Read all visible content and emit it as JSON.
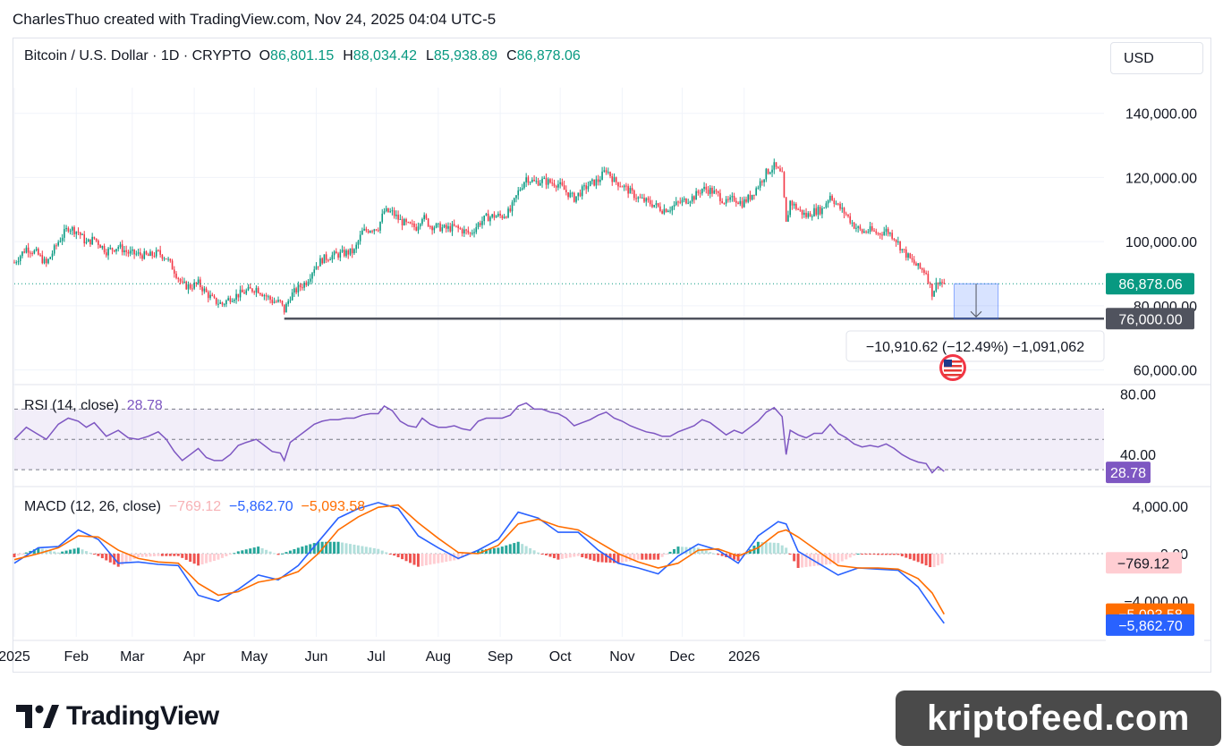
{
  "caption": "CharlesThuo created with TradingView.com, Nov 24, 2025 04:04 UTC-5",
  "header": {
    "symbol": "Bitcoin / U.S. Dollar · 1D · CRYPTO",
    "o_label": "O",
    "o_value": "86,801.15",
    "h_label": "H",
    "h_value": "88,034.42",
    "l_label": "L",
    "l_value": "85,938.89",
    "c_label": "C",
    "c_value": "86,878.06",
    "currency": "USD"
  },
  "colors": {
    "up": "#089981",
    "down": "#f23645",
    "rsi": "#7e57c2",
    "macd": "#2962ff",
    "signal": "#ff6d00",
    "hist_up": "#26a69a",
    "hist_down": "#ef5350"
  },
  "chart_data": [
    {
      "type": "candlestick",
      "title": "Bitcoin / U.S. Dollar · 1D · CRYPTO",
      "x_labels": [
        "2025",
        "Feb",
        "Mar",
        "Apr",
        "May",
        "Jun",
        "Jul",
        "Aug",
        "Sep",
        "Oct",
        "Nov",
        "Dec",
        "2026"
      ],
      "y_ticks": [
        "140,000.00",
        "120,000.00",
        "100,000.00",
        "80,000.00",
        "60,000.00"
      ],
      "ylim": [
        56000,
        148000
      ],
      "close_path": [
        [
          0,
          93500
        ],
        [
          6,
          98000
        ],
        [
          11,
          96500
        ],
        [
          16,
          93000
        ],
        [
          22,
          100000
        ],
        [
          27,
          104500
        ],
        [
          32,
          103000
        ],
        [
          36,
          99500
        ],
        [
          40,
          101000
        ],
        [
          46,
          97000
        ],
        [
          52,
          98500
        ],
        [
          57,
          96500
        ],
        [
          62,
          96000
        ],
        [
          67,
          95500
        ],
        [
          72,
          96500
        ],
        [
          76,
          95000
        ],
        [
          80,
          91000
        ],
        [
          84,
          86500
        ],
        [
          88,
          86000
        ],
        [
          92,
          87000
        ],
        [
          96,
          84000
        ],
        [
          100,
          81500
        ],
        [
          104,
          80500
        ],
        [
          108,
          82500
        ],
        [
          112,
          83500
        ],
        [
          116,
          84500
        ],
        [
          121,
          85500
        ],
        [
          125,
          83500
        ],
        [
          129,
          81500
        ],
        [
          133,
          81000
        ],
        [
          135,
          78500
        ],
        [
          138,
          83000
        ],
        [
          142,
          85500
        ],
        [
          146,
          87500
        ],
        [
          150,
          92000
        ],
        [
          154,
          94500
        ],
        [
          158,
          95500
        ],
        [
          162,
          96000
        ],
        [
          166,
          96500
        ],
        [
          170,
          97000
        ],
        [
          174,
          103000
        ],
        [
          178,
          104000
        ],
        [
          182,
          104500
        ],
        [
          185,
          109500
        ],
        [
          189,
          109000
        ],
        [
          193,
          106500
        ],
        [
          197,
          105000
        ],
        [
          201,
          104500
        ],
        [
          204,
          108000
        ],
        [
          208,
          105000
        ],
        [
          212,
          104500
        ],
        [
          216,
          104000
        ],
        [
          220,
          104500
        ],
        [
          224,
          103500
        ],
        [
          228,
          102500
        ],
        [
          232,
          105500
        ],
        [
          236,
          107500
        ],
        [
          240,
          108000
        ],
        [
          244,
          108000
        ],
        [
          248,
          109500
        ],
        [
          252,
          115500
        ],
        [
          256,
          120000
        ],
        [
          260,
          118500
        ],
        [
          264,
          119000
        ],
        [
          268,
          118500
        ],
        [
          272,
          118000
        ],
        [
          276,
          115500
        ],
        [
          280,
          113500
        ],
        [
          284,
          116000
        ],
        [
          288,
          118000
        ],
        [
          292,
          119000
        ],
        [
          296,
          122500
        ],
        [
          300,
          119000
        ],
        [
          304,
          117500
        ],
        [
          308,
          115500
        ],
        [
          312,
          113500
        ],
        [
          316,
          112500
        ],
        [
          320,
          111500
        ],
        [
          324,
          110000
        ],
        [
          328,
          110500
        ],
        [
          332,
          112000
        ],
        [
          336,
          113000
        ],
        [
          340,
          114000
        ],
        [
          344,
          116500
        ],
        [
          348,
          116000
        ],
        [
          352,
          114500
        ],
        [
          356,
          112000
        ],
        [
          360,
          113500
        ],
        [
          364,
          112000
        ],
        [
          368,
          114000
        ],
        [
          372,
          117500
        ],
        [
          376,
          121500
        ],
        [
          380,
          123500
        ],
        [
          384,
          120500
        ],
        [
          386,
          105500
        ],
        [
          388,
          112500
        ],
        [
          392,
          110000
        ],
        [
          396,
          108000
        ],
        [
          400,
          109500
        ],
        [
          404,
          110000
        ],
        [
          408,
          114500
        ],
        [
          412,
          111000
        ],
        [
          416,
          108500
        ],
        [
          420,
          105000
        ],
        [
          424,
          103000
        ],
        [
          428,
          103500
        ],
        [
          432,
          102500
        ],
        [
          436,
          103500
        ],
        [
          440,
          101500
        ],
        [
          444,
          97500
        ],
        [
          448,
          94500
        ],
        [
          452,
          92000
        ],
        [
          456,
          90500
        ],
        [
          459,
          84000
        ],
        [
          462,
          87800
        ],
        [
          465,
          86878
        ]
      ],
      "series": [
        {
          "name": "",
          "values": []
        }
      ],
      "annotations": {
        "last_price": "86,878.06",
        "horizontal_line": 76000,
        "horizontal_line_label": "76,000.00",
        "measure_box": {
          "from": 86878,
          "to": 76000,
          "label": "−10,910.62 (−12.49%) −1,091,062"
        }
      }
    },
    {
      "type": "line",
      "title": "RSI (14, close)",
      "value_label": "28.78",
      "y_ticks": [
        "80.00",
        "40.00"
      ],
      "ylim": [
        20,
        85
      ],
      "bands": [
        70,
        50,
        30
      ],
      "x": [
        0,
        6,
        11,
        16,
        22,
        27,
        32,
        36,
        40,
        46,
        52,
        57,
        62,
        67,
        72,
        76,
        80,
        84,
        88,
        92,
        96,
        100,
        104,
        108,
        112,
        116,
        121,
        125,
        129,
        133,
        135,
        138,
        142,
        146,
        150,
        154,
        158,
        162,
        166,
        170,
        174,
        178,
        182,
        185,
        189,
        193,
        197,
        201,
        204,
        208,
        212,
        216,
        220,
        224,
        228,
        232,
        236,
        240,
        244,
        248,
        252,
        256,
        260,
        264,
        268,
        272,
        276,
        280,
        284,
        288,
        292,
        296,
        300,
        304,
        308,
        312,
        316,
        320,
        324,
        328,
        332,
        336,
        340,
        344,
        348,
        352,
        356,
        360,
        364,
        368,
        372,
        376,
        380,
        384,
        386,
        388,
        392,
        396,
        400,
        404,
        408,
        412,
        416,
        420,
        424,
        428,
        432,
        436,
        440,
        444,
        448,
        452,
        456,
        459,
        462,
        465
      ],
      "values": [
        50,
        58,
        54,
        50,
        60,
        64,
        62,
        58,
        61,
        52,
        56,
        51,
        50,
        52,
        55,
        50,
        42,
        36,
        40,
        44,
        38,
        36,
        36,
        40,
        46,
        48,
        50,
        46,
        42,
        41,
        36,
        48,
        52,
        56,
        60,
        62,
        63,
        63,
        64,
        64,
        66,
        67,
        67,
        72,
        69,
        62,
        59,
        58,
        64,
        60,
        58,
        58,
        59,
        57,
        56,
        62,
        64,
        64,
        64,
        66,
        72,
        74,
        70,
        70,
        68,
        67,
        64,
        59,
        61,
        63,
        66,
        68,
        64,
        62,
        59,
        57,
        55,
        54,
        52,
        52,
        55,
        57,
        59,
        63,
        61,
        57,
        53,
        56,
        54,
        58,
        62,
        68,
        71,
        65,
        40,
        56,
        53,
        51,
        54,
        54,
        60,
        54,
        51,
        47,
        45,
        46,
        45,
        47,
        44,
        40,
        37,
        35,
        34,
        28,
        32,
        28.78
      ]
    },
    {
      "type": "line",
      "title": "MACD (12, 26, close)",
      "values_label": [
        "−769.12",
        "−5,862.70",
        "−5,093.58"
      ],
      "y_ticks": [
        "4,000.00",
        "0.00",
        "−4,000.00"
      ],
      "ylim": [
        -7000,
        5500
      ],
      "series": [
        {
          "name": "MACD",
          "x": [
            0,
            12,
            22,
            32,
            42,
            52,
            62,
            72,
            82,
            92,
            102,
            112,
            122,
            132,
            142,
            152,
            162,
            172,
            182,
            192,
            202,
            212,
            222,
            232,
            242,
            252,
            262,
            272,
            282,
            292,
            302,
            312,
            322,
            332,
            342,
            352,
            362,
            372,
            382,
            386,
            392,
            402,
            412,
            422,
            432,
            442,
            452,
            459,
            465
          ],
          "values": [
            -800,
            500,
            600,
            2000,
            1200,
            -800,
            -700,
            -900,
            -1000,
            -3500,
            -4000,
            -3000,
            -1800,
            -2200,
            -1000,
            1000,
            3000,
            3800,
            4300,
            3800,
            1500,
            500,
            -400,
            300,
            1200,
            3500,
            3000,
            1800,
            1800,
            300,
            -800,
            -1200,
            -1700,
            -200,
            800,
            300,
            -800,
            1500,
            2700,
            2500,
            200,
            -800,
            -1800,
            -1200,
            -1300,
            -1400,
            -2800,
            -4500,
            -5862.7
          ]
        },
        {
          "name": "Signal",
          "x": [
            0,
            12,
            22,
            32,
            42,
            52,
            62,
            72,
            82,
            92,
            102,
            112,
            122,
            132,
            142,
            152,
            162,
            172,
            182,
            192,
            202,
            212,
            222,
            232,
            242,
            252,
            262,
            272,
            282,
            292,
            302,
            312,
            322,
            332,
            342,
            352,
            362,
            372,
            382,
            386,
            392,
            402,
            412,
            422,
            432,
            442,
            452,
            459,
            465
          ],
          "values": [
            -500,
            0,
            500,
            1500,
            1400,
            300,
            -400,
            -700,
            -800,
            -2500,
            -3500,
            -3200,
            -2400,
            -2100,
            -1500,
            0,
            2000,
            3100,
            3900,
            4100,
            2600,
            1300,
            100,
            0,
            700,
            2500,
            2900,
            2300,
            2000,
            1000,
            0,
            -700,
            -1200,
            -800,
            300,
            400,
            -200,
            500,
            1800,
            2000,
            1400,
            200,
            -1000,
            -1200,
            -1200,
            -1300,
            -2100,
            -3300,
            -5093.58
          ]
        }
      ],
      "histogram_label": "−769.12"
    }
  ],
  "footer": {
    "brand": "TradingView"
  },
  "watermark": "kriptofeed.com"
}
